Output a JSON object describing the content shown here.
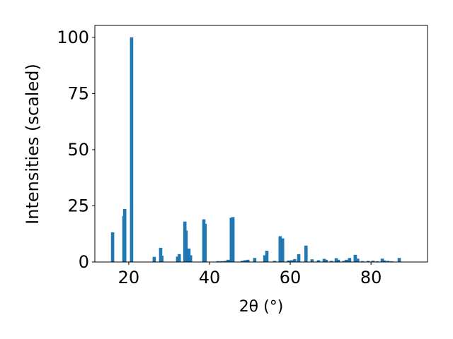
{
  "chart_data": {
    "type": "bar",
    "xlabel": "2θ (°)",
    "ylabel": "Intensities (scaled)",
    "x": [
      16.0,
      18.8,
      19.0,
      20.7,
      26.3,
      27.9,
      28.2,
      32.1,
      32.5,
      33.9,
      34.2,
      34.9,
      35.3,
      38.6,
      38.9,
      42.1,
      43.0,
      43.9,
      44.6,
      45.4,
      45.8,
      48.1,
      48.8,
      49.5,
      51.2,
      53.7,
      54.2,
      56.1,
      57.5,
      58.1,
      59.6,
      60.4,
      61.1,
      62.1,
      63.9,
      65.4,
      67.0,
      68.4,
      68.9,
      70.2,
      71.4,
      71.9,
      73.3,
      73.9,
      74.7,
      76.1,
      76.7,
      77.9,
      79.3,
      80.5,
      81.6,
      82.8,
      83.3,
      84.2,
      85.1,
      87.0
    ],
    "values": [
      13.2,
      20.5,
      23.6,
      100,
      2.3,
      6.3,
      2.8,
      2.4,
      3.5,
      18,
      14,
      6,
      3,
      19,
      17,
      0.4,
      0.4,
      0.5,
      1,
      19.7,
      20,
      0.5,
      0.8,
      1,
      1.8,
      3,
      5,
      0.5,
      11.5,
      10.5,
      0.7,
      0.8,
      1.3,
      3.5,
      7.3,
      1.2,
      0.8,
      1.4,
      1,
      0.5,
      1.7,
      1,
      0.5,
      1,
      1.8,
      3.2,
      1.5,
      0.4,
      0.5,
      0.6,
      0.3,
      1.5,
      0.7,
      0.5,
      0.3,
      1.8
    ],
    "color": "#1f77b4",
    "xlim": [
      11.6,
      94
    ],
    "ylim": [
      0,
      105.3
    ],
    "xticks": [
      20,
      40,
      60,
      80
    ],
    "yticks": [
      0,
      25,
      50,
      75,
      100
    ]
  }
}
